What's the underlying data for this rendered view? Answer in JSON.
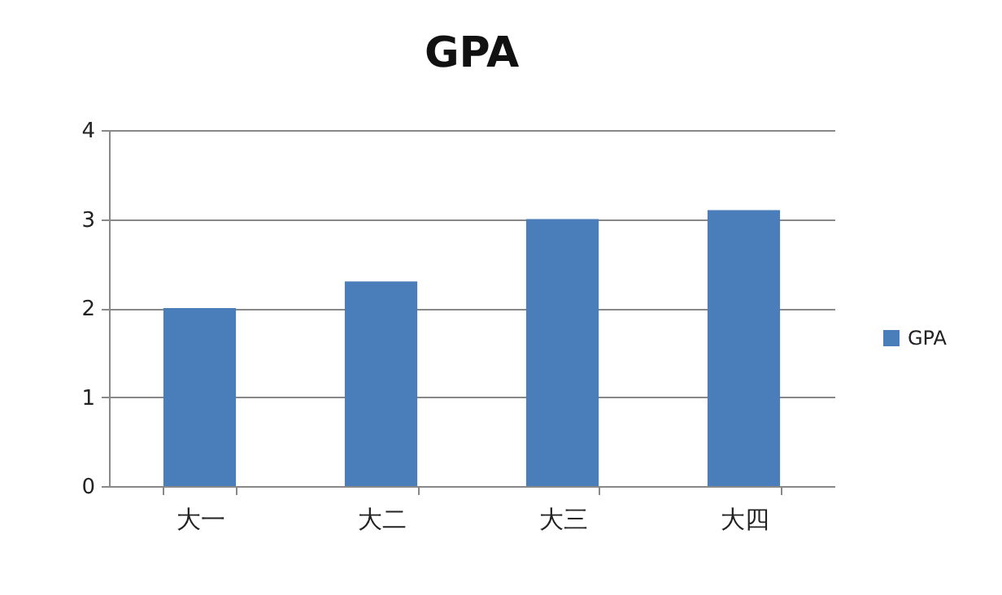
{
  "chart_data": {
    "type": "bar",
    "title": "GPA",
    "categories": [
      "大一",
      "大二",
      "大三",
      "大四"
    ],
    "series": [
      {
        "name": "GPA",
        "color": "#4a7ebb",
        "values": [
          2.0,
          2.3,
          3.0,
          3.1
        ]
      }
    ],
    "ylim": [
      0,
      4
    ],
    "yticks": [
      0,
      1,
      2,
      3,
      4
    ],
    "grid": "y",
    "legend": "right"
  }
}
